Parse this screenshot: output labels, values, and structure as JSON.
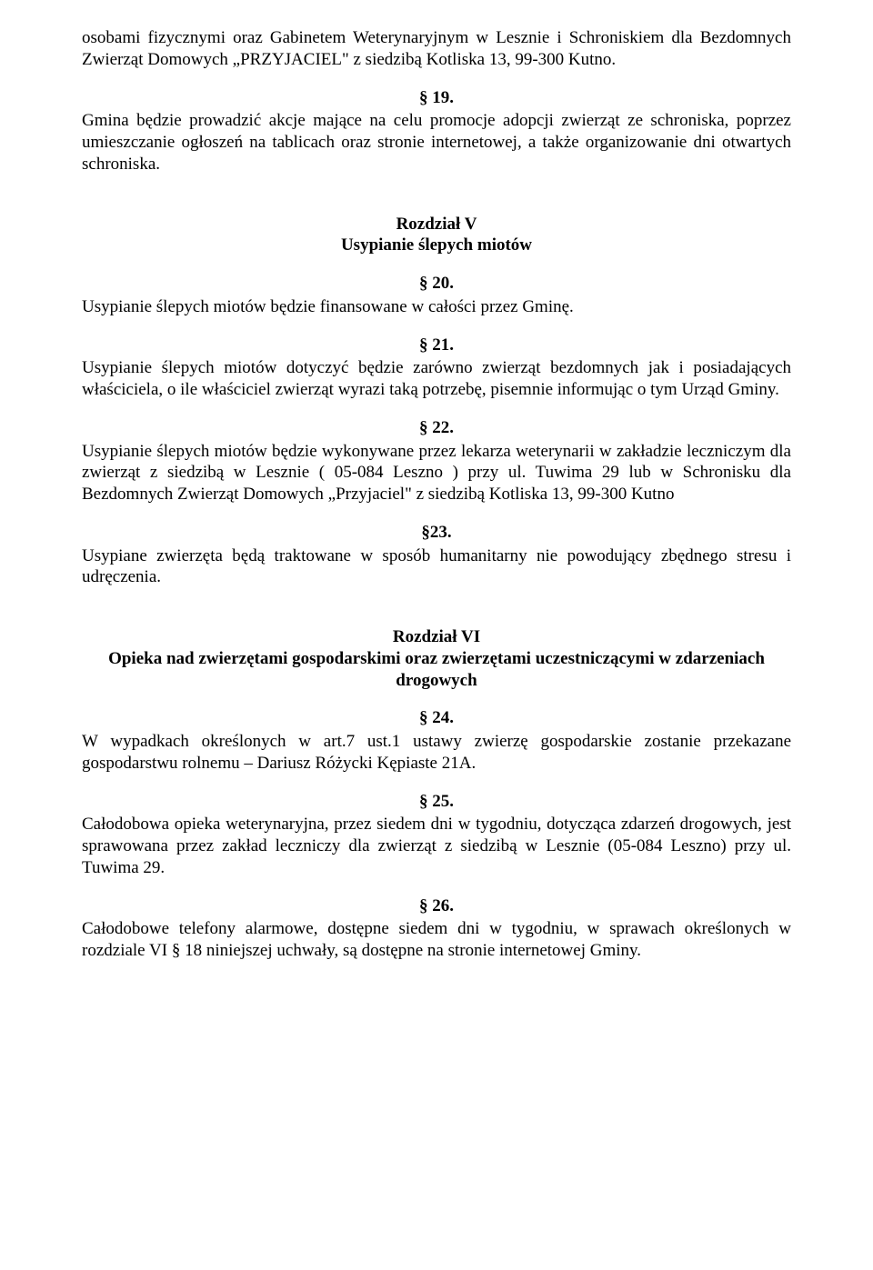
{
  "text_color": "#000000",
  "background_color": "#ffffff",
  "font_family": "Times New Roman",
  "base_font_size_pt": 14,
  "para1": "osobami fizycznymi oraz Gabinetem Weterynaryjnym w Lesznie i Schroniskiem dla Bezdomnych Zwierząt Domowych „PRZYJACIEL\" z siedzibą Kotliska 13, 99-300 Kutno.",
  "s19_num": "§ 19.",
  "s19_text": "Gmina będzie prowadzić akcje mające na celu promocje adopcji zwierząt ze schroniska, poprzez umieszczanie ogłoszeń na tablicach oraz stronie internetowej, a także organizowanie dni otwartych schroniska.",
  "ch5_label": "Rozdział V",
  "ch5_title": "Usypianie ślepych miotów",
  "s20_num": "§ 20.",
  "s20_text": "Usypianie ślepych miotów będzie finansowane w całości przez Gminę.",
  "s21_num": "§ 21.",
  "s21_text": "Usypianie ślepych miotów dotyczyć będzie zarówno zwierząt bezdomnych jak i posiadających właściciela, o ile właściciel zwierząt wyrazi taką potrzebę, pisemnie informując o tym Urząd Gminy.",
  "s22_num": "§ 22.",
  "s22_text": "Usypianie ślepych miotów będzie wykonywane przez lekarza weterynarii w zakładzie leczniczym dla zwierząt z siedzibą w Lesznie ( 05-084 Leszno ) przy ul. Tuwima 29 lub w Schronisku dla Bezdomnych Zwierząt Domowych „Przyjaciel\" z siedzibą Kotliska 13, 99-300 Kutno",
  "s23_num": "§23.",
  "s23_text": "Usypiane zwierzęta będą traktowane w sposób humanitarny nie powodujący zbędnego stresu i udręczenia.",
  "ch6_label": "Rozdział VI",
  "ch6_title": "Opieka nad zwierzętami gospodarskimi oraz zwierzętami uczestniczącymi w zdarzeniach drogowych",
  "s24_num": "§ 24.",
  "s24_text": "W wypadkach określonych w art.7 ust.1 ustawy zwierzę gospodarskie zostanie przekazane gospodarstwu rolnemu – Dariusz Różycki Kępiaste 21A.",
  "s25_num": "§ 25.",
  "s25_text": "Całodobowa opieka weterynaryjna, przez siedem dni w tygodniu, dotycząca zdarzeń drogowych, jest sprawowana przez zakład leczniczy dla zwierząt z siedzibą w Lesznie (05-084 Leszno) przy ul. Tuwima 29.",
  "s26_num": "§ 26.",
  "s26_text": "Całodobowe telefony alarmowe, dostępne siedem dni w tygodniu,  w sprawach określonych w rozdziale VI § 18 niniejszej uchwały, są dostępne na stronie internetowej Gminy."
}
